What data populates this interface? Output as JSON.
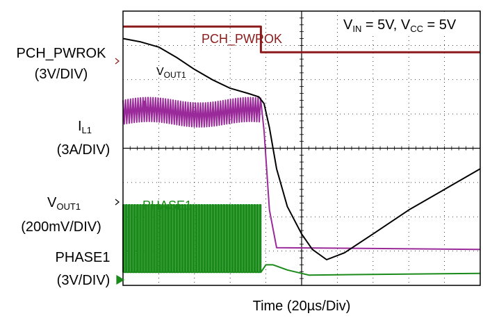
{
  "chart_data": {
    "type": "line",
    "title": "",
    "xlabel": "Time (20µs/Div)",
    "grid": true,
    "divisions": {
      "x": 10,
      "y": 8
    },
    "xlim": [
      0,
      10
    ],
    "ylim": [
      0,
      8
    ],
    "annotation": {
      "text": "VIN = 5V, VCC = 5V",
      "parts": [
        "V",
        "IN",
        " = 5V, V",
        "CC",
        " = 5V"
      ]
    },
    "channel_labels": [
      {
        "name": "PCH_PWROK",
        "scale": "(3V/DIV)",
        "name_parts": [
          "PCH_PWROK",
          ""
        ]
      },
      {
        "name": "IL1",
        "scale": "(3A/DIV)",
        "name_parts": [
          "I",
          "L1"
        ]
      },
      {
        "name": "VOUT1",
        "scale": "(200mV/DIV)",
        "name_parts": [
          "V",
          "OUT1"
        ]
      },
      {
        "name": "PHASE1",
        "scale": "(3V/DIV)",
        "name_parts": [
          "PHASE1",
          ""
        ]
      }
    ],
    "series": [
      {
        "name": "PCH_PWROK",
        "label_parts": [
          "PCH_PWROK",
          ""
        ],
        "color": "#8b1a1a",
        "x": [
          0,
          3.86,
          3.86,
          10
        ],
        "y": [
          7.55,
          7.55,
          6.8,
          6.8
        ]
      },
      {
        "name": "VOUT1",
        "label_parts": [
          "V",
          "OUT1"
        ],
        "color": "#000000",
        "x": [
          0,
          0.5,
          1.0,
          1.5,
          2.0,
          2.5,
          3.0,
          3.5,
          3.8,
          3.95,
          4.1,
          4.3,
          4.6,
          5.0,
          5.3,
          5.7,
          6.2,
          7.0,
          8.0,
          9.0,
          10
        ],
        "y": [
          7.2,
          7.1,
          6.95,
          6.65,
          6.3,
          6.0,
          5.75,
          5.6,
          5.5,
          5.3,
          4.6,
          3.4,
          2.3,
          1.5,
          1.05,
          0.75,
          0.95,
          1.5,
          2.2,
          2.8,
          3.4
        ]
      },
      {
        "name": "IL1",
        "label_parts": [
          "I",
          "L1"
        ],
        "color": "#9a2a9a",
        "x": [
          0,
          3.86,
          3.95,
          4.1,
          4.3,
          10
        ],
        "y": [
          5.05,
          5.05,
          4.5,
          2.2,
          1.1,
          1.05
        ],
        "ripple": {
          "x_start": 0,
          "x_end": 3.86,
          "center": 5.05,
          "amplitude": 0.35,
          "period": 0.07
        }
      },
      {
        "name": "PHASE1",
        "label_parts": [
          "PHASE1",
          ""
        ],
        "color": "#1a8a1a",
        "x": [
          0,
          3.86,
          4.0,
          4.2,
          4.6,
          5.2,
          10
        ],
        "y": [
          0.38,
          0.38,
          0.6,
          0.6,
          0.45,
          0.3,
          0.35
        ],
        "pulses": {
          "x_start": 0,
          "x_end": 3.86,
          "low": 0.38,
          "high": 2.35,
          "period": 0.078
        }
      }
    ]
  }
}
